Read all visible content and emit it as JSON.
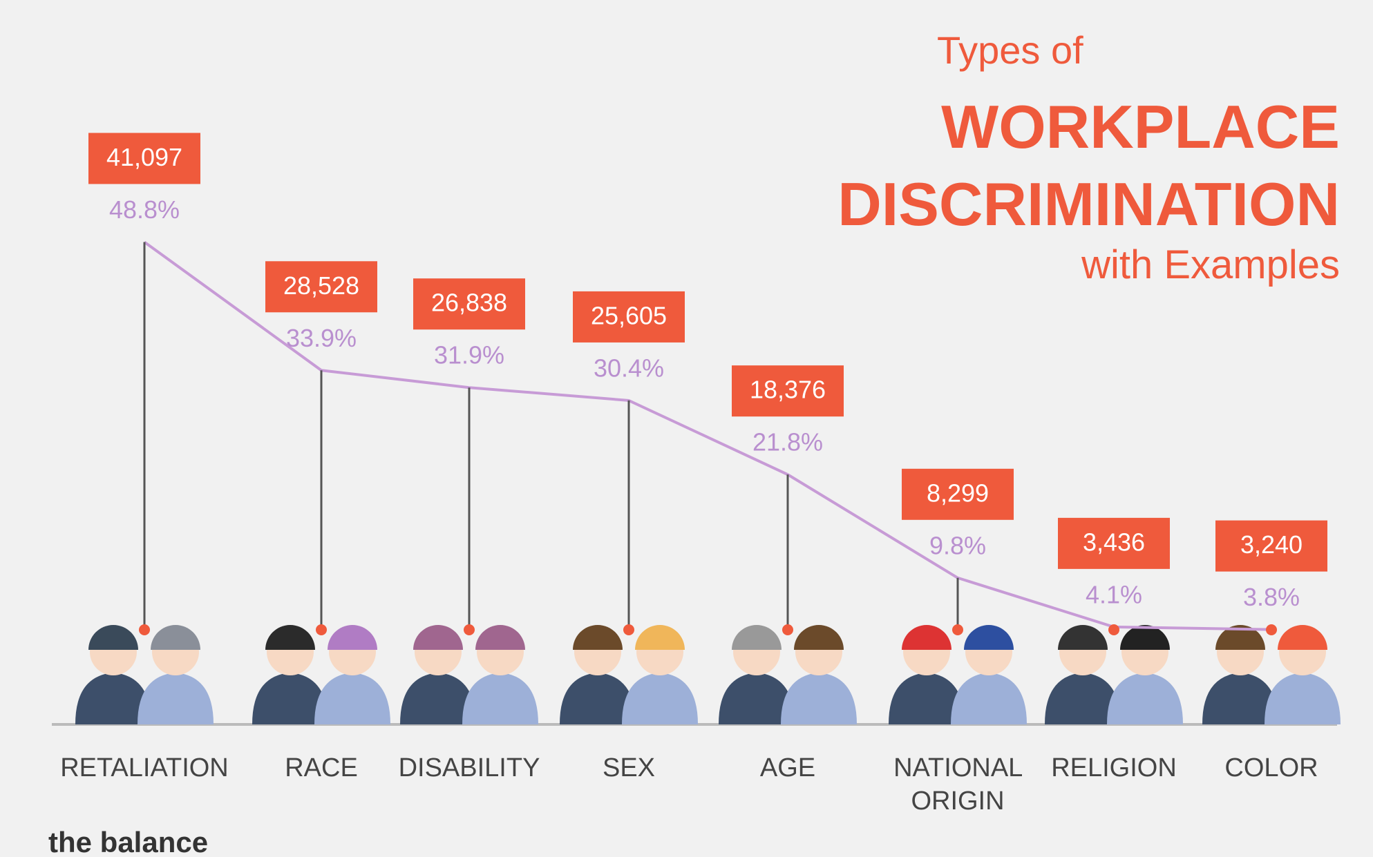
{
  "chart_data": {
    "type": "line",
    "title_prefix": "Types of",
    "title": "WORKPLACE DISCRIMINATION",
    "subtitle": "with Examples",
    "categories": [
      "RETALIATION",
      "RACE",
      "DISABILITY",
      "SEX",
      "AGE",
      "NATIONAL ORIGIN",
      "RELIGION",
      "COLOR"
    ],
    "values": [
      41097,
      28528,
      26838,
      25605,
      18376,
      8299,
      3436,
      3240
    ],
    "value_labels": [
      "41,097",
      "28,528",
      "26,838",
      "25,605",
      "18,376",
      "8,299",
      "3,436",
      "3,240"
    ],
    "percentages": [
      48.8,
      33.9,
      31.9,
      30.4,
      21.8,
      9.8,
      4.1,
      3.8
    ],
    "percentage_labels": [
      "48.8%",
      "33.9%",
      "31.9%",
      "30.4%",
      "21.8%",
      "9.8%",
      "4.1%",
      "3.8%"
    ],
    "box_color": "#ef5a3c",
    "line_color": "#c79bd6",
    "brand": "the balance"
  }
}
